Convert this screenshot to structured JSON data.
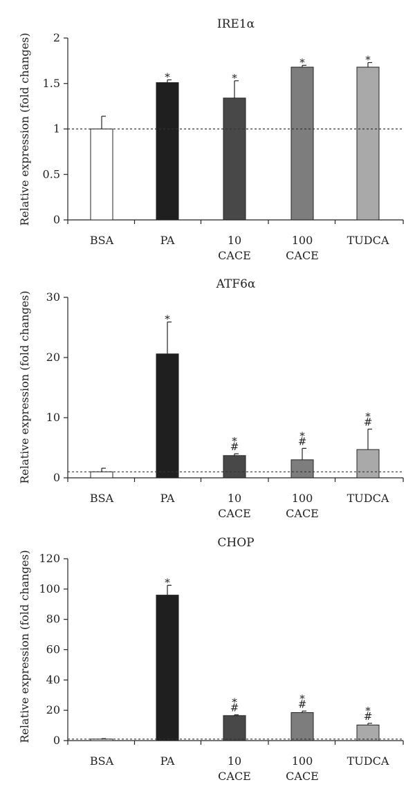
{
  "chart_data": [
    {
      "type": "bar",
      "title": "IRE1α",
      "ylabel": "Relative expression (fold changes)",
      "ylim": [
        0,
        2
      ],
      "yticks": [
        "0",
        "0.5",
        "1",
        "1.5",
        "2"
      ],
      "reference_line": 1,
      "categories": [
        [
          "BSA"
        ],
        [
          "PA"
        ],
        [
          "10",
          "CACE"
        ],
        [
          "100",
          "CACE"
        ],
        [
          "TUDCA"
        ]
      ],
      "values": [
        1.0,
        1.51,
        1.34,
        1.68,
        1.68
      ],
      "errors": [
        0.14,
        0.03,
        0.19,
        0.02,
        0.05
      ],
      "annotations": [
        [],
        [
          "*"
        ],
        [
          "*"
        ],
        [
          "*"
        ],
        [
          "*"
        ]
      ],
      "colors": [
        "#ffffff",
        "#1f1f1f",
        "#484848",
        "#7d7d7d",
        "#a9a9a9"
      ]
    },
    {
      "type": "bar",
      "title": "ATF6α",
      "ylabel": "Relative expression (fold changes)",
      "ylim": [
        0,
        30
      ],
      "yticks": [
        "0",
        "10",
        "20",
        "30"
      ],
      "reference_line": 1,
      "categories": [
        [
          "BSA"
        ],
        [
          "PA"
        ],
        [
          "10",
          "CACE"
        ],
        [
          "100",
          "CACE"
        ],
        [
          "TUDCA"
        ]
      ],
      "values": [
        1.0,
        20.6,
        3.7,
        3.0,
        4.7
      ],
      "errors": [
        0.6,
        5.3,
        0.3,
        1.9,
        3.4
      ],
      "annotations": [
        [],
        [
          "*"
        ],
        [
          "*",
          "#"
        ],
        [
          "*",
          "#"
        ],
        [
          "*",
          "#"
        ]
      ],
      "colors": [
        "#ffffff",
        "#1f1f1f",
        "#484848",
        "#7d7d7d",
        "#a9a9a9"
      ]
    },
    {
      "type": "bar",
      "title": "CHOP",
      "ylabel": "Relative expression (fold changes)",
      "ylim": [
        0,
        120
      ],
      "yticks": [
        "0",
        "20",
        "40",
        "60",
        "80",
        "100",
        "120"
      ],
      "reference_line": 1,
      "categories": [
        [
          "BSA"
        ],
        [
          "PA"
        ],
        [
          "10",
          "CACE"
        ],
        [
          "100",
          "CACE"
        ],
        [
          "TUDCA"
        ]
      ],
      "values": [
        1.0,
        96.0,
        16.5,
        18.5,
        10.3
      ],
      "errors": [
        0.3,
        6.5,
        0.5,
        1.0,
        1.1
      ],
      "annotations": [
        [],
        [
          "*"
        ],
        [
          "*",
          "#"
        ],
        [
          "*",
          "#"
        ],
        [
          "*",
          "#"
        ]
      ],
      "colors": [
        "#ffffff",
        "#1f1f1f",
        "#484848",
        "#7d7d7d",
        "#a9a9a9"
      ]
    }
  ]
}
